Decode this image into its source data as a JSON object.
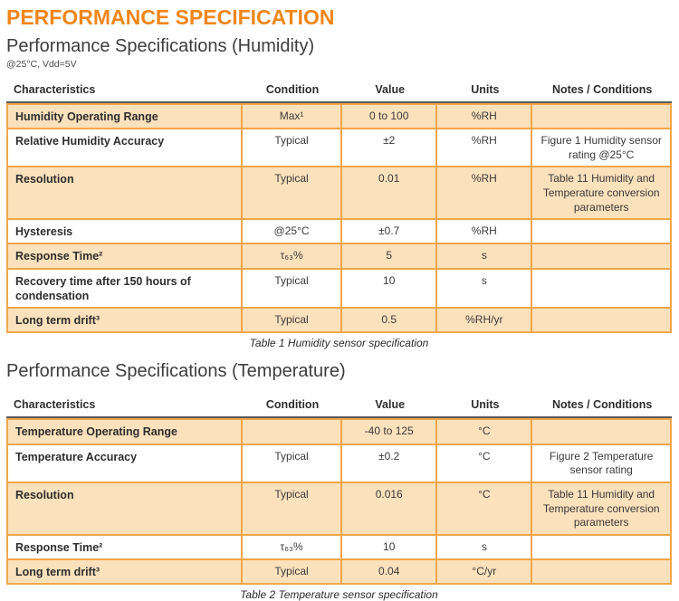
{
  "page": {
    "title": "PERFORMANCE SPECIFICATION"
  },
  "colors": {
    "accent_orange": "#F0861A",
    "row_shade": "#FBE1BC",
    "table_border": "#F2A64B",
    "header_rule": "#58585A"
  },
  "sections": [
    {
      "heading": "Performance Specifications (Humidity)",
      "subheading": "@25°C, Vdd=5V",
      "caption": "Table 1 Humidity sensor specification",
      "columns": [
        "Characteristics",
        "Condition",
        "Value",
        "Units",
        "Notes / Conditions"
      ],
      "rows": [
        {
          "shaded": true,
          "cells": [
            "Humidity Operating Range",
            "Max¹",
            "0 to 100",
            "%RH",
            ""
          ]
        },
        {
          "shaded": false,
          "cells": [
            "Relative Humidity Accuracy",
            "Typical",
            "±2",
            "%RH",
            "Figure 1 Humidity sensor rating @25°C"
          ]
        },
        {
          "shaded": true,
          "cells": [
            "Resolution",
            "Typical",
            "0.01",
            "%RH",
            "Table 11 Humidity and Temperature conversion parameters"
          ]
        },
        {
          "shaded": false,
          "cells": [
            "Hysteresis",
            "@25°C",
            "±0.7",
            "%RH",
            ""
          ]
        },
        {
          "shaded": true,
          "cells": [
            "Response Time²",
            "τ₆₃%",
            "5",
            "s",
            ""
          ]
        },
        {
          "shaded": false,
          "cells": [
            "Recovery time after 150 hours of condensation",
            "Typical",
            "10",
            "s",
            ""
          ]
        },
        {
          "shaded": true,
          "cells": [
            "Long term drift³",
            "Typical",
            "0.5",
            "%RH/yr",
            ""
          ]
        }
      ]
    },
    {
      "heading": "Performance Specifications (Temperature)",
      "subheading": "",
      "caption": "Table 2 Temperature sensor specification",
      "columns": [
        "Characteristics",
        "Condition",
        "Value",
        "Units",
        "Notes / Conditions"
      ],
      "rows": [
        {
          "shaded": true,
          "cells": [
            "Temperature Operating Range",
            "",
            "-40 to 125",
            "°C",
            ""
          ]
        },
        {
          "shaded": false,
          "cells": [
            "Temperature Accuracy",
            "Typical",
            "±0.2",
            "°C",
            "Figure 2 Temperature sensor rating"
          ]
        },
        {
          "shaded": true,
          "cells": [
            "Resolution",
            "Typical",
            "0.016",
            "°C",
            "Table 11 Humidity and Temperature conversion parameters"
          ]
        },
        {
          "shaded": false,
          "cells": [
            "Response Time²",
            "τ₆₃%",
            "10",
            "s",
            ""
          ]
        },
        {
          "shaded": true,
          "cells": [
            "Long term drift³",
            "Typical",
            "0.04",
            "°C/yr",
            ""
          ]
        }
      ]
    }
  ]
}
